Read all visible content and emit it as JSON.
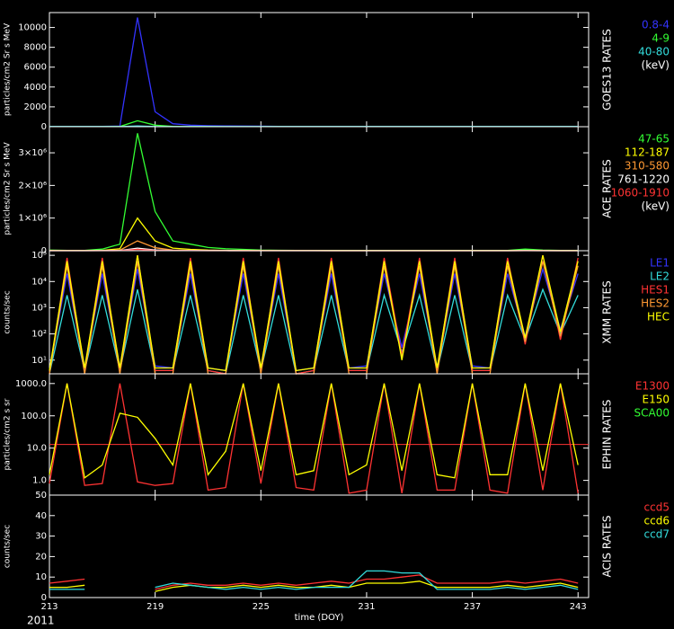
{
  "chart_data": [
    {
      "type": "line",
      "panel_label": "GOES13 RATES",
      "ylabel": "particles/cm2 Sr s MeV",
      "units_label": "(keV)",
      "x": [
        213,
        214,
        215,
        216,
        217,
        218,
        219,
        220,
        221,
        222,
        223,
        224,
        225,
        226,
        227,
        228,
        229,
        230,
        231,
        232,
        233,
        234,
        235,
        236,
        237,
        238,
        239,
        240,
        241,
        242,
        243
      ],
      "xlim": [
        213,
        243.6
      ],
      "ylim": [
        0,
        11500
      ],
      "yticks": [
        0,
        2000,
        4000,
        6000,
        8000,
        10000
      ],
      "series": [
        {
          "name": "0.8-4",
          "color": "#3333ff",
          "values": [
            40,
            30,
            35,
            30,
            60,
            11000,
            1500,
            300,
            150,
            100,
            80,
            60,
            50,
            40,
            40,
            35,
            30,
            30,
            30,
            30,
            30,
            30,
            30,
            30,
            30,
            30,
            30,
            30,
            30,
            30,
            30
          ]
        },
        {
          "name": "4-9",
          "color": "#33ff33",
          "values": [
            10,
            10,
            10,
            10,
            20,
            600,
            150,
            40,
            20,
            15,
            12,
            10,
            10,
            10,
            10,
            10,
            10,
            10,
            10,
            10,
            10,
            10,
            10,
            10,
            10,
            10,
            10,
            10,
            10,
            10,
            10
          ]
        },
        {
          "name": "40-80",
          "color": "#33dddd",
          "values": [
            5,
            5,
            5,
            5,
            5,
            80,
            20,
            5,
            5,
            5,
            5,
            5,
            5,
            5,
            5,
            5,
            5,
            5,
            5,
            5,
            5,
            5,
            5,
            5,
            5,
            5,
            5,
            5,
            5,
            5,
            5
          ]
        }
      ]
    },
    {
      "type": "line",
      "panel_label": "ACE RATES",
      "ylabel": "particles/cm2 Sr s MeV",
      "units_label": "(keV)",
      "x": [
        213,
        214,
        215,
        216,
        217,
        218,
        219,
        220,
        221,
        222,
        223,
        224,
        225,
        226,
        227,
        228,
        229,
        230,
        231,
        232,
        233,
        234,
        235,
        236,
        237,
        238,
        239,
        240,
        241,
        242,
        243
      ],
      "xlim": [
        213,
        243.6
      ],
      "ylim": [
        0,
        3800000
      ],
      "yticks": [
        0,
        {
          "value": 1000000,
          "label": "1×10⁶"
        },
        {
          "value": 2000000,
          "label": "2×10⁶"
        },
        {
          "value": 3000000,
          "label": "3×10⁶"
        }
      ],
      "series": [
        {
          "name": "47-65",
          "color": "#33ff33",
          "values": [
            20000,
            10000,
            10000,
            50000,
            200000,
            3600000,
            1200000,
            300000,
            200000,
            100000,
            60000,
            40000,
            20000,
            15000,
            10000,
            10000,
            8000,
            8000,
            8000,
            8000,
            8000,
            8000,
            8000,
            8000,
            8000,
            8000,
            8000,
            50000,
            20000,
            8000,
            8000
          ]
        },
        {
          "name": "112-187",
          "color": "#ffff00",
          "values": [
            5000,
            4000,
            4000,
            10000,
            60000,
            1000000,
            300000,
            80000,
            40000,
            20000,
            10000,
            8000,
            5000,
            4000,
            4000,
            4000,
            3000,
            3000,
            3000,
            3000,
            3000,
            3000,
            3000,
            3000,
            3000,
            3000,
            3000,
            10000,
            5000,
            3000,
            3000
          ]
        },
        {
          "name": "310-580",
          "color": "#ff9933",
          "values": [
            2000,
            1500,
            1500,
            4000,
            20000,
            300000,
            90000,
            20000,
            10000,
            6000,
            4000,
            3000,
            2000,
            1500,
            1500,
            1500,
            1000,
            1000,
            1000,
            1000,
            1000,
            1000,
            1000,
            1000,
            1000,
            1000,
            1000,
            4000,
            2000,
            1000,
            1000
          ]
        },
        {
          "name": "761-1220",
          "color": "#ffffff",
          "values": [
            800,
            600,
            600,
            1500,
            6000,
            80000,
            25000,
            6000,
            3000,
            2000,
            1500,
            1000,
            800,
            600,
            600,
            600,
            500,
            500,
            500,
            500,
            500,
            500,
            500,
            500,
            500,
            500,
            500,
            1500,
            800,
            500,
            500
          ]
        },
        {
          "name": "1060-1910",
          "color": "#ff3333",
          "values": [
            400,
            300,
            300,
            800,
            3000,
            40000,
            12000,
            3000,
            1500,
            1000,
            800,
            500,
            400,
            300,
            300,
            300,
            250,
            250,
            250,
            250,
            250,
            250,
            250,
            250,
            250,
            250,
            250,
            800,
            400,
            250,
            250
          ]
        }
      ]
    },
    {
      "type": "line",
      "panel_label": "XMM RATES",
      "ylabel": "counts/sec",
      "log_scale": true,
      "x": [
        213,
        214,
        215,
        216,
        217,
        218,
        219,
        220,
        221,
        222,
        223,
        224,
        225,
        226,
        227,
        228,
        229,
        230,
        231,
        232,
        233,
        234,
        235,
        236,
        237,
        238,
        239,
        240,
        241,
        242,
        243
      ],
      "xlim": [
        213,
        243.6
      ],
      "ylim": [
        3,
        150000
      ],
      "yticks": [
        {
          "value": 10,
          "label": "10¹"
        },
        {
          "value": 100,
          "label": "10²"
        },
        {
          "value": 1000,
          "label": "10³"
        },
        {
          "value": 10000,
          "label": "10⁴"
        },
        {
          "value": 100000,
          "label": "10⁵"
        }
      ],
      "series": [
        {
          "name": "LE1",
          "color": "#3333ff",
          "values": [
            4,
            20000,
            5,
            20000,
            5,
            30000,
            6,
            5,
            20000,
            5,
            4,
            20000,
            5,
            20000,
            4,
            5,
            20000,
            5,
            6,
            20000,
            30,
            20000,
            5,
            20000,
            6,
            5,
            20000,
            80,
            30000,
            150,
            20000
          ]
        },
        {
          "name": "LE2",
          "color": "#33dddd",
          "values": [
            3,
            3000,
            4,
            3000,
            4,
            5000,
            4,
            4,
            3000,
            4,
            3,
            3000,
            4,
            3000,
            3,
            4,
            3000,
            4,
            4,
            3000,
            20,
            3000,
            4,
            3000,
            4,
            4,
            3000,
            60,
            5000,
            100,
            3000
          ]
        },
        {
          "name": "HES1",
          "color": "#ff3333",
          "values": [
            3,
            80000,
            4,
            80000,
            4,
            100000,
            4,
            4,
            80000,
            4,
            3,
            80000,
            4,
            80000,
            3,
            4,
            80000,
            4,
            4,
            80000,
            15,
            80000,
            4,
            80000,
            4,
            4,
            80000,
            40,
            100000,
            60,
            80000
          ]
        },
        {
          "name": "HES2",
          "color": "#ff9933",
          "values": [
            3,
            40000,
            3,
            40000,
            3,
            60000,
            3,
            3,
            40000,
            3,
            3,
            40000,
            3,
            40000,
            3,
            3,
            40000,
            3,
            3,
            40000,
            12,
            40000,
            3,
            40000,
            3,
            3,
            40000,
            50,
            60000,
            80,
            40000
          ]
        },
        {
          "name": "HEC",
          "color": "#ffff00",
          "values": [
            4,
            60000,
            5,
            60000,
            5,
            100000,
            5,
            5,
            60000,
            5,
            4,
            60000,
            5,
            60000,
            4,
            5,
            60000,
            5,
            5,
            60000,
            10,
            60000,
            5,
            60000,
            5,
            5,
            60000,
            70,
            100000,
            120,
            60000
          ]
        }
      ]
    },
    {
      "type": "line",
      "panel_label": "EPHIN RATES",
      "ylabel": "particles/cm2 s sr",
      "log_scale": true,
      "x": [
        213,
        214,
        215,
        216,
        217,
        218,
        219,
        220,
        221,
        222,
        223,
        224,
        225,
        226,
        227,
        228,
        229,
        230,
        231,
        232,
        233,
        234,
        235,
        236,
        237,
        238,
        239,
        240,
        241,
        242,
        243
      ],
      "xlim": [
        213,
        243.6
      ],
      "ylim": [
        0.35,
        2000
      ],
      "reference_line": 13,
      "yticks": [
        {
          "value": 1,
          "label": "1.0"
        },
        {
          "value": 10,
          "label": "10.0"
        },
        {
          "value": 100,
          "label": "100.0"
        },
        {
          "value": 1000,
          "label": "1000.0"
        }
      ],
      "series": [
        {
          "name": "E1300",
          "color": "#ff3333",
          "values": [
            0.8,
            1000,
            0.7,
            0.8,
            1000,
            0.9,
            0.7,
            0.8,
            1000,
            0.5,
            0.6,
            1000,
            0.8,
            1000,
            0.6,
            0.5,
            1000,
            0.4,
            0.5,
            1000,
            0.4,
            1000,
            0.5,
            0.5,
            1000,
            0.5,
            0.4,
            1000,
            0.5,
            1000,
            0.4
          ]
        },
        {
          "name": "E150",
          "color": "#ffff00",
          "values": [
            1.5,
            1000,
            1.2,
            3,
            120,
            90,
            20,
            3,
            1000,
            1.5,
            8,
            1000,
            2,
            1000,
            1.5,
            2,
            1000,
            1.5,
            3,
            1000,
            2,
            1000,
            1.5,
            1.2,
            1000,
            1.5,
            1.5,
            1000,
            2,
            1000,
            3
          ]
        },
        {
          "name": "SCA00",
          "color": "#33ff33",
          "values": [
            null,
            null,
            null,
            null,
            null,
            null,
            null,
            null,
            null,
            null,
            null,
            null,
            null,
            null,
            null,
            null,
            null,
            null,
            null,
            null,
            null,
            null,
            null,
            null,
            null,
            null,
            null,
            null,
            null,
            null,
            null
          ]
        }
      ]
    },
    {
      "type": "line",
      "panel_label": "ACIS RATES",
      "ylabel": "counts/sec",
      "xlabel": "time (DOY)",
      "year_label": "2011",
      "x": [
        213,
        214,
        215,
        216,
        217,
        218,
        219,
        220,
        221,
        222,
        223,
        224,
        225,
        226,
        227,
        228,
        229,
        230,
        231,
        232,
        233,
        234,
        235,
        236,
        237,
        238,
        239,
        240,
        241,
        242,
        243
      ],
      "xlim": [
        213,
        243.6
      ],
      "xticks": [
        213,
        219,
        225,
        231,
        237,
        243
      ],
      "ylim": [
        0,
        50
      ],
      "yticks": [
        0,
        10,
        20,
        30,
        40,
        50
      ],
      "series": [
        {
          "name": "ccd5",
          "color": "#ff3333",
          "values": [
            7,
            8,
            9,
            null,
            null,
            null,
            4,
            6,
            7,
            6,
            6,
            7,
            6,
            7,
            6,
            7,
            8,
            7,
            9,
            9,
            10,
            11,
            7,
            7,
            7,
            7,
            8,
            7,
            8,
            9,
            7
          ]
        },
        {
          "name": "ccd6",
          "color": "#ffff00",
          "values": [
            5,
            5,
            6,
            null,
            null,
            null,
            3,
            5,
            6,
            5,
            5,
            6,
            5,
            6,
            5,
            5,
            6,
            5,
            7,
            7,
            7,
            8,
            5,
            5,
            5,
            5,
            6,
            5,
            6,
            7,
            5
          ]
        },
        {
          "name": "ccd7",
          "color": "#33dddd",
          "values": [
            4,
            4,
            4,
            null,
            null,
            null,
            5,
            7,
            6,
            5,
            4,
            5,
            4,
            5,
            4,
            5,
            5,
            5,
            13,
            13,
            12,
            12,
            4,
            4,
            4,
            4,
            5,
            4,
            5,
            6,
            4
          ]
        }
      ]
    }
  ]
}
